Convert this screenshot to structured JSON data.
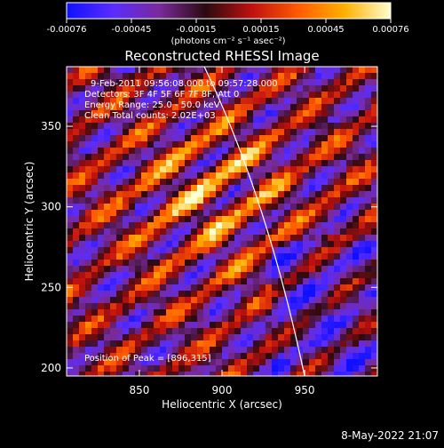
{
  "colorbar": {
    "ticks": [
      "-0.00076",
      "-0.00045",
      "-0.00015",
      "0.00015",
      "0.00045",
      "0.00076"
    ],
    "unit_label": "(photons cm⁻² s⁻¹ asec⁻²)",
    "stops": [
      "#1010ff",
      "#5a2cff",
      "#7a2a9a",
      "#2a0a10",
      "#c01010",
      "#ff5a00",
      "#ffb000",
      "#ffffd0"
    ]
  },
  "title": "Reconstructed RHESSI Image",
  "info_lines": [
    "9-Feb-2011 09:56:08.000 to 09:57:28.000",
    "Detectors: 3F 4F 5F 6F 7F 8F, Att 0",
    "Energy Range: 25.0 - 50.0 keV",
    "Clean    Total counts: 2.02E+03"
  ],
  "peak_label": "Position of Peak = [896,315]",
  "x_axis": {
    "label": "Heliocentric X (arcsec)",
    "ticks": [
      850,
      900,
      950
    ],
    "range": [
      806,
      994
    ]
  },
  "y_axis": {
    "label": "Heliocentric Y (arcsec)",
    "ticks": [
      200,
      250,
      300,
      350
    ],
    "range": [
      195,
      387
    ]
  },
  "timestamp": "8-May-2022 21:07"
}
